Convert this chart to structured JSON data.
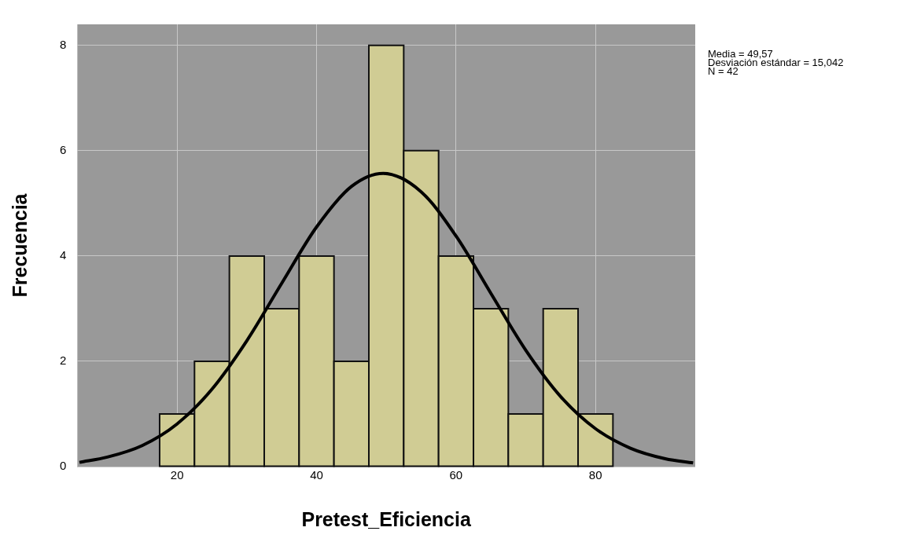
{
  "chart_data": {
    "type": "histogram",
    "xlabel": "Pretest_Eficiencia",
    "ylabel": "Frecuencia",
    "bins": [
      17.5,
      22.5,
      27.5,
      32.5,
      37.5,
      42.5,
      47.5,
      52.5,
      57.5,
      62.5,
      67.5,
      72.5,
      77.5,
      82.5
    ],
    "values": [
      1,
      2,
      4,
      3,
      4,
      2,
      8,
      6,
      4,
      3,
      1,
      3,
      1
    ],
    "color": "#d0cc94",
    "series": [
      {
        "type": "line",
        "color": "#000000",
        "x": [
          6,
          10,
          15,
          20,
          25,
          30,
          35,
          40,
          45,
          49.57,
          55,
          60,
          65,
          70,
          75,
          80,
          85,
          90,
          94
        ],
        "values": [
          0.08,
          0.18,
          0.4,
          0.81,
          1.47,
          2.39,
          3.48,
          4.55,
          5.32,
          5.57,
          5.22,
          4.38,
          3.29,
          2.21,
          1.33,
          0.72,
          0.35,
          0.15,
          0.07
        ]
      }
    ],
    "xlim": [
      5.7,
      94.3
    ],
    "xticks": [
      20,
      40,
      60,
      80
    ],
    "ylim": [
      0,
      8.4
    ],
    "yticks": [
      0,
      2,
      4,
      6,
      8
    ],
    "grid": true,
    "legend": false,
    "marker": "none",
    "line_style": "solid",
    "annotations": [
      "Media = 49,57",
      "Desviación estándar = 15,042",
      "N = 42"
    ]
  }
}
